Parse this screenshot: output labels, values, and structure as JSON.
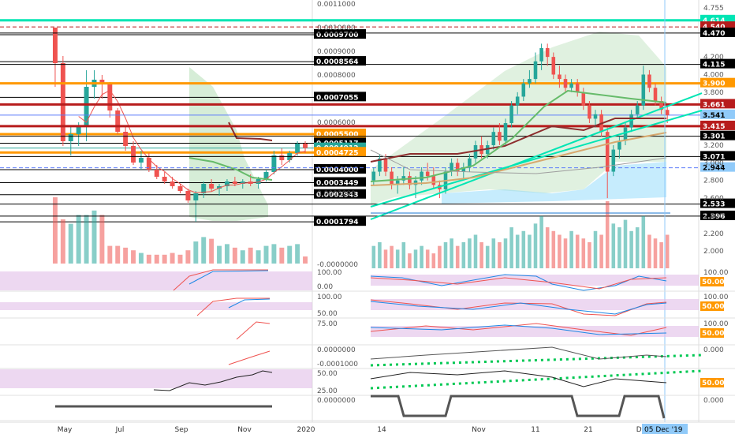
{
  "colors": {
    "up": "#26a69a",
    "down": "#ef5350",
    "orange": "#ff9800",
    "darkred": "#b71c1c",
    "teal": "#00e5b4",
    "cloud": "#a5d6a7",
    "ichimoku_blue": "#81d4fa",
    "label_bg": "#000000",
    "label_fg": "#ffffff",
    "osc_fill": "#e1bee7",
    "dot_green": "#00c853",
    "blue_dash": "#5c7cfa",
    "bb_red": "#ef5350"
  },
  "chart_data": [
    {
      "type": "candlestick",
      "panel": "left",
      "x_ticks": [
        "May",
        "Jul",
        "Sep",
        "Nov",
        "2020"
      ],
      "y_axis_labels": [
        "0.0011000",
        "0.0010000",
        "0.0009000",
        "0.0008000",
        "0.0006000",
        "0.0003000",
        "-0.0000000"
      ],
      "price_levels": [
        {
          "label": "0.0009700",
          "value": 0.00097,
          "style": "black"
        },
        {
          "label": "0.0008564",
          "value": 0.0008564,
          "style": "black"
        },
        {
          "label": "0.0007055",
          "value": 0.0007055,
          "style": "black"
        },
        {
          "label": "0.0005500",
          "value": 0.00055,
          "style": "orange"
        },
        {
          "label": "0.0005117",
          "value": 0.0005117,
          "style": "black"
        },
        {
          "label": "0.0004912",
          "value": 0.0004912,
          "style": "up"
        },
        {
          "label": "0.0004725",
          "value": 0.0004725,
          "style": "orange"
        },
        {
          "label": "0.0004000",
          "value": 0.0004,
          "style": "black"
        },
        {
          "label": "0.0003449",
          "value": 0.0003449,
          "style": "black"
        },
        {
          "label": "0.0002943",
          "value": 0.0002943,
          "style": "black"
        },
        {
          "label": "0.0001794",
          "value": 0.0001794,
          "style": "black"
        }
      ],
      "candles": [
        [
          0.001,
          0.001,
          0.00075,
          0.00085
        ],
        [
          0.00085,
          0.00088,
          0.0005,
          0.00052
        ],
        [
          0.00052,
          0.00058,
          0.00046,
          0.00055
        ],
        [
          0.00055,
          0.0006,
          0.0005,
          0.00058
        ],
        [
          0.00058,
          0.00082,
          0.00052,
          0.00075
        ],
        [
          0.00075,
          0.00082,
          0.0007,
          0.00078
        ],
        [
          0.00078,
          0.0008,
          0.0007,
          0.00076
        ],
        [
          0.00076,
          0.00077,
          0.00062,
          0.00065
        ],
        [
          0.00065,
          0.00066,
          0.00055,
          0.00056
        ],
        [
          0.00056,
          0.00058,
          0.00048,
          0.0005
        ],
        [
          0.0005,
          0.00052,
          0.00042,
          0.00043
        ],
        [
          0.00043,
          0.00048,
          0.0004,
          0.00045
        ],
        [
          0.00045,
          0.00047,
          0.00039,
          0.0004
        ],
        [
          0.0004,
          0.00042,
          0.00036,
          0.00037
        ],
        [
          0.00037,
          0.00039,
          0.00034,
          0.00035
        ],
        [
          0.00035,
          0.00037,
          0.00032,
          0.00033
        ],
        [
          0.00033,
          0.00034,
          0.0003,
          0.00031
        ],
        [
          0.00031,
          0.00032,
          0.00026,
          0.00027
        ],
        [
          0.00027,
          0.00031,
          0.00018,
          0.0003
        ],
        [
          0.0003,
          0.00035,
          0.00028,
          0.00034
        ],
        [
          0.00034,
          0.00036,
          0.00031,
          0.00032
        ],
        [
          0.00032,
          0.00034,
          0.00029,
          0.00033
        ],
        [
          0.00033,
          0.00036,
          0.00031,
          0.00035
        ],
        [
          0.00035,
          0.00037,
          0.00033,
          0.00034
        ],
        [
          0.00034,
          0.00036,
          0.00032,
          0.00035
        ],
        [
          0.00035,
          0.00038,
          0.00033,
          0.00034
        ],
        [
          0.00034,
          0.00037,
          0.00032,
          0.00036
        ],
        [
          0.00036,
          0.0004,
          0.00035,
          0.00039
        ],
        [
          0.00039,
          0.00048,
          0.00038,
          0.00046
        ],
        [
          0.00046,
          0.00049,
          0.00042,
          0.00044
        ],
        [
          0.00044,
          0.00048,
          0.00043,
          0.00047
        ],
        [
          0.00047,
          0.00052,
          0.00046,
          0.00051
        ],
        [
          0.00051,
          0.00052,
          0.00047,
          0.0004912
        ]
      ],
      "volume": [
        0.75,
        0.5,
        0.45,
        0.55,
        0.55,
        0.6,
        0.55,
        0.2,
        0.2,
        0.18,
        0.15,
        0.12,
        0.1,
        0.1,
        0.1,
        0.12,
        0.1,
        0.15,
        0.25,
        0.3,
        0.28,
        0.2,
        0.22,
        0.18,
        0.15,
        0.18,
        0.15,
        0.2,
        0.22,
        0.18,
        0.2,
        0.22,
        0.08
      ],
      "osc_axis_labels": {
        "p1": [
          "100.00",
          "0.00"
        ],
        "p2": [
          "100.00",
          "50.00"
        ],
        "p3": [
          "75.00"
        ],
        "p4": [
          "0.0000000",
          "-0.0001000"
        ],
        "p5": [
          "50.00",
          "25.00"
        ],
        "p6": [
          "0.0000000"
        ]
      }
    },
    {
      "type": "candlestick",
      "panel": "right",
      "x_ticks": [
        "14",
        "Nov",
        "11",
        "21",
        "De"
      ],
      "crosshair_date": "05 Dec '19",
      "y_axis_labels": [
        "4.755",
        "4.200",
        "4.000",
        "3.800",
        "3.200",
        "3.000",
        "2.800",
        "2.600",
        "2.400",
        "2.200",
        "2.000"
      ],
      "price_levels": [
        {
          "label": "4.614",
          "value": 4.614,
          "style": "teal"
        },
        {
          "label": "4.540",
          "value": 4.54,
          "style": "darkred-dash"
        },
        {
          "label": "4.470",
          "value": 4.47,
          "style": "black"
        },
        {
          "label": "4.115",
          "value": 4.115,
          "style": "black"
        },
        {
          "label": "3.900",
          "value": 3.9,
          "style": "orange"
        },
        {
          "label": "3.661",
          "value": 3.661,
          "style": "darkred"
        },
        {
          "label": "3.541",
          "value": 3.541,
          "style": "blue"
        },
        {
          "label": "3.415",
          "value": 3.415,
          "style": "darkred"
        },
        {
          "label": "3.301",
          "value": 3.301,
          "style": "black"
        },
        {
          "label": "3.071",
          "value": 3.071,
          "style": "black"
        },
        {
          "label": "2.944",
          "value": 2.944,
          "style": "blue-dash"
        },
        {
          "label": "2.533",
          "value": 2.533,
          "style": "black"
        },
        {
          "label": "2.396",
          "value": 2.396,
          "style": "black"
        }
      ],
      "candles": [
        [
          2.8,
          2.95,
          2.75,
          2.9
        ],
        [
          2.9,
          3.1,
          2.85,
          3.05
        ],
        [
          3.05,
          3.1,
          2.85,
          2.9
        ],
        [
          2.9,
          2.95,
          2.7,
          2.75
        ],
        [
          2.75,
          2.85,
          2.65,
          2.8
        ],
        [
          2.8,
          2.95,
          2.75,
          2.85
        ],
        [
          2.85,
          2.9,
          2.7,
          2.75
        ],
        [
          2.75,
          2.85,
          2.6,
          2.8
        ],
        [
          2.8,
          2.95,
          2.75,
          2.9
        ],
        [
          2.9,
          3.0,
          2.8,
          2.85
        ],
        [
          2.85,
          2.95,
          2.7,
          2.75
        ],
        [
          2.75,
          2.8,
          2.6,
          2.7
        ],
        [
          2.7,
          2.95,
          2.65,
          2.9
        ],
        [
          2.9,
          3.05,
          2.85,
          3.0
        ],
        [
          3.0,
          3.05,
          2.85,
          2.9
        ],
        [
          2.9,
          3.0,
          2.8,
          2.95
        ],
        [
          2.95,
          3.1,
          2.9,
          3.05
        ],
        [
          3.05,
          3.25,
          3.0,
          3.2
        ],
        [
          3.2,
          3.3,
          3.05,
          3.1
        ],
        [
          3.1,
          3.25,
          3.05,
          3.2
        ],
        [
          3.2,
          3.4,
          3.15,
          3.35
        ],
        [
          3.35,
          3.45,
          3.2,
          3.25
        ],
        [
          3.25,
          3.5,
          3.2,
          3.45
        ],
        [
          3.45,
          3.7,
          3.4,
          3.65
        ],
        [
          3.65,
          3.8,
          3.55,
          3.75
        ],
        [
          3.75,
          3.95,
          3.7,
          3.9
        ],
        [
          3.9,
          4.05,
          3.85,
          3.95
        ],
        [
          3.95,
          4.25,
          3.9,
          4.15
        ],
        [
          4.15,
          4.35,
          4.05,
          4.3
        ],
        [
          4.3,
          4.35,
          4.1,
          4.2
        ],
        [
          4.2,
          4.25,
          3.95,
          4.0
        ],
        [
          4.0,
          4.1,
          3.85,
          3.95
        ],
        [
          3.95,
          4.0,
          3.8,
          3.85
        ],
        [
          3.85,
          3.95,
          3.8,
          3.9
        ],
        [
          3.9,
          3.95,
          3.75,
          3.8
        ],
        [
          3.8,
          3.85,
          3.6,
          3.65
        ],
        [
          3.65,
          3.7,
          3.45,
          3.5
        ],
        [
          3.5,
          3.6,
          3.4,
          3.55
        ],
        [
          3.55,
          3.6,
          3.3,
          3.35
        ],
        [
          3.35,
          3.4,
          2.6,
          2.9
        ],
        [
          2.9,
          3.2,
          2.85,
          3.15
        ],
        [
          3.15,
          3.3,
          3.05,
          3.25
        ],
        [
          3.25,
          3.45,
          3.2,
          3.4
        ],
        [
          3.4,
          3.6,
          3.35,
          3.55
        ],
        [
          3.55,
          3.7,
          3.5,
          3.65
        ],
        [
          3.65,
          4.1,
          3.6,
          4.0
        ],
        [
          4.0,
          4.05,
          3.8,
          3.85
        ],
        [
          3.85,
          3.9,
          3.65,
          3.7
        ],
        [
          3.7,
          3.75,
          3.55,
          3.6
        ],
        [
          3.6,
          3.65,
          3.45,
          3.541
        ]
      ],
      "volume": [
        0.3,
        0.35,
        0.25,
        0.3,
        0.25,
        0.35,
        0.2,
        0.25,
        0.3,
        0.25,
        0.2,
        0.3,
        0.35,
        0.4,
        0.3,
        0.35,
        0.4,
        0.45,
        0.35,
        0.3,
        0.4,
        0.35,
        0.4,
        0.55,
        0.45,
        0.5,
        0.45,
        0.6,
        0.7,
        0.55,
        0.5,
        0.45,
        0.4,
        0.5,
        0.45,
        0.4,
        0.35,
        0.5,
        0.45,
        0.9,
        0.6,
        0.55,
        0.65,
        0.5,
        0.55,
        0.7,
        0.45,
        0.4,
        0.35,
        0.45
      ],
      "osc_axis_labels": {
        "p1": [
          "100.00",
          "50.00"
        ],
        "p2": [
          "100.00",
          "50.00"
        ],
        "p3": [
          "100.00",
          "50.00"
        ],
        "p4": [
          "0.000"
        ],
        "p5": [
          "50.00"
        ],
        "p6": [
          "0.000"
        ]
      }
    }
  ]
}
